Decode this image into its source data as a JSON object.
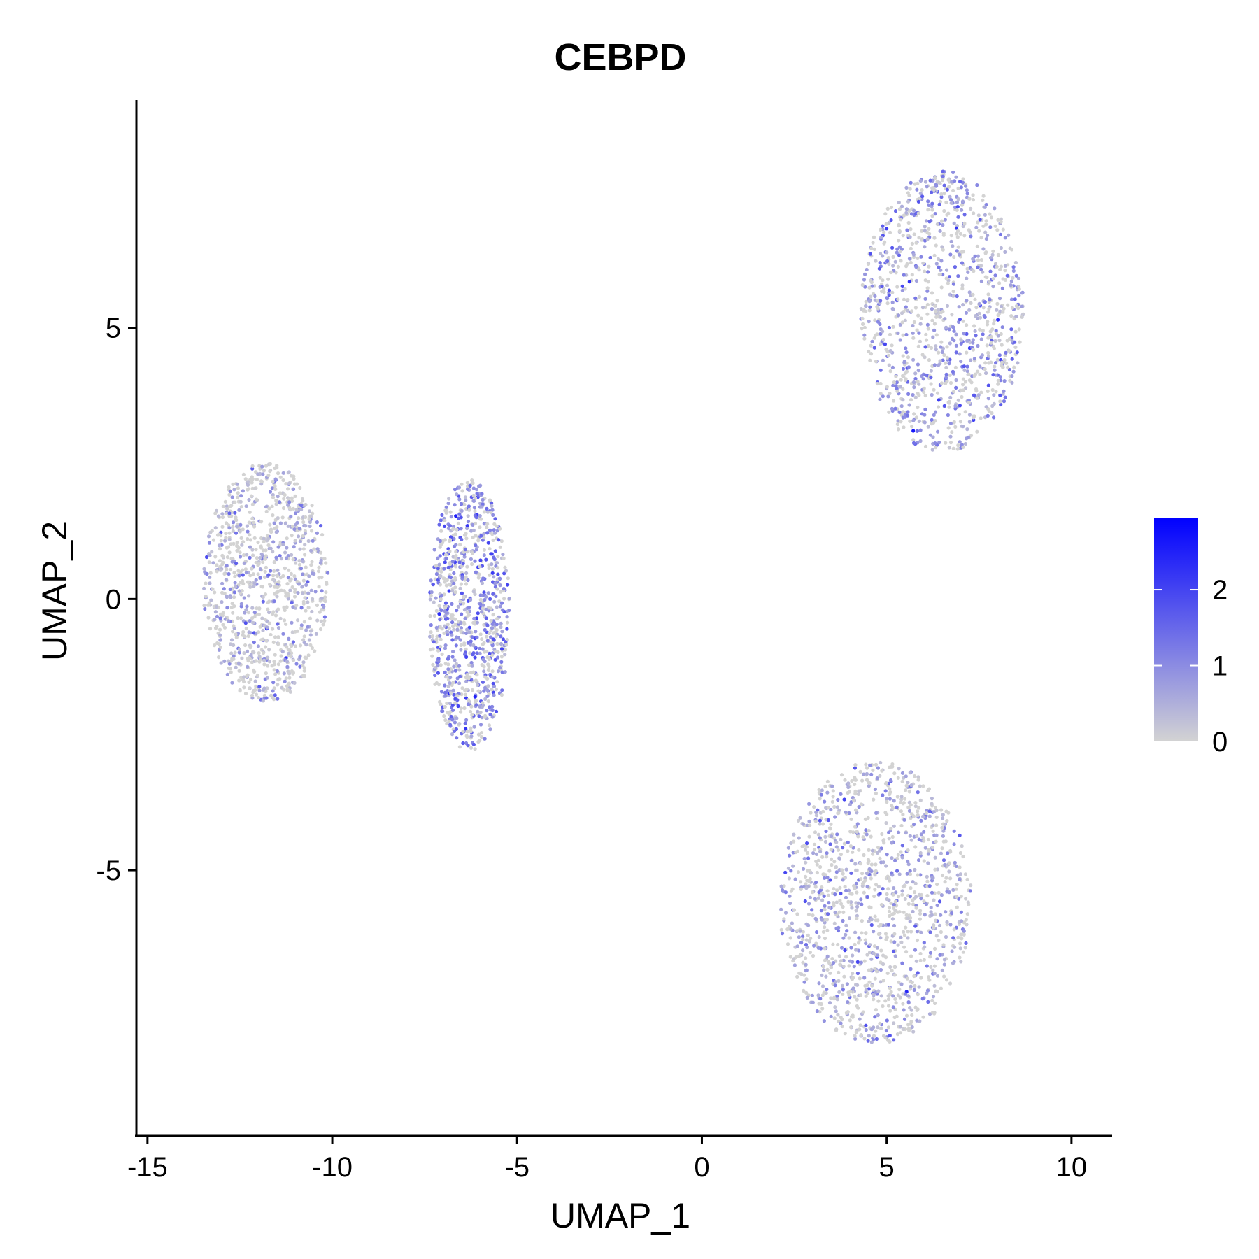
{
  "chart_data": {
    "type": "scatter",
    "title": "CEBPD",
    "xlabel": "UMAP_1",
    "ylabel": "UMAP_2",
    "xlim": [
      -15.3,
      11.1
    ],
    "ylim": [
      -9.9,
      9.2
    ],
    "x_ticks": [
      {
        "value": -15,
        "label": "-15"
      },
      {
        "value": -10,
        "label": "-10"
      },
      {
        "value": -5,
        "label": "-5"
      },
      {
        "value": 0,
        "label": "0"
      },
      {
        "value": 5,
        "label": "5"
      },
      {
        "value": 10,
        "label": "10"
      }
    ],
    "y_ticks": [
      {
        "value": 5,
        "label": "5"
      },
      {
        "value": 0,
        "label": "0"
      },
      {
        "value": -5,
        "label": "-5"
      }
    ],
    "grid": false,
    "color_scale": {
      "low_color": "#d3d3d3",
      "high_color": "#0000ff",
      "min": 0,
      "max": 2.95,
      "ticks": [
        {
          "value": 0,
          "label": "0"
        },
        {
          "value": 1,
          "label": "1"
        },
        {
          "value": 2,
          "label": "2"
        }
      ],
      "legend_position": "right"
    },
    "clusters": [
      {
        "name": "top-right",
        "center": [
          6.5,
          5.3
        ],
        "spread": [
          2.2,
          2.6
        ],
        "n_points": 1100,
        "mean_expression": 0.75
      },
      {
        "name": "bottom-right",
        "center": [
          4.7,
          -5.6
        ],
        "spread": [
          2.6,
          2.6
        ],
        "n_points": 1300,
        "mean_expression": 0.45
      },
      {
        "name": "middle",
        "center": [
          -6.3,
          -0.3
        ],
        "spread": [
          1.1,
          2.5
        ],
        "n_points": 900,
        "mean_expression": 1.0
      },
      {
        "name": "left",
        "center": [
          -11.8,
          0.3
        ],
        "spread": [
          1.7,
          2.2
        ],
        "n_points": 1000,
        "mean_expression": 0.3
      }
    ]
  }
}
